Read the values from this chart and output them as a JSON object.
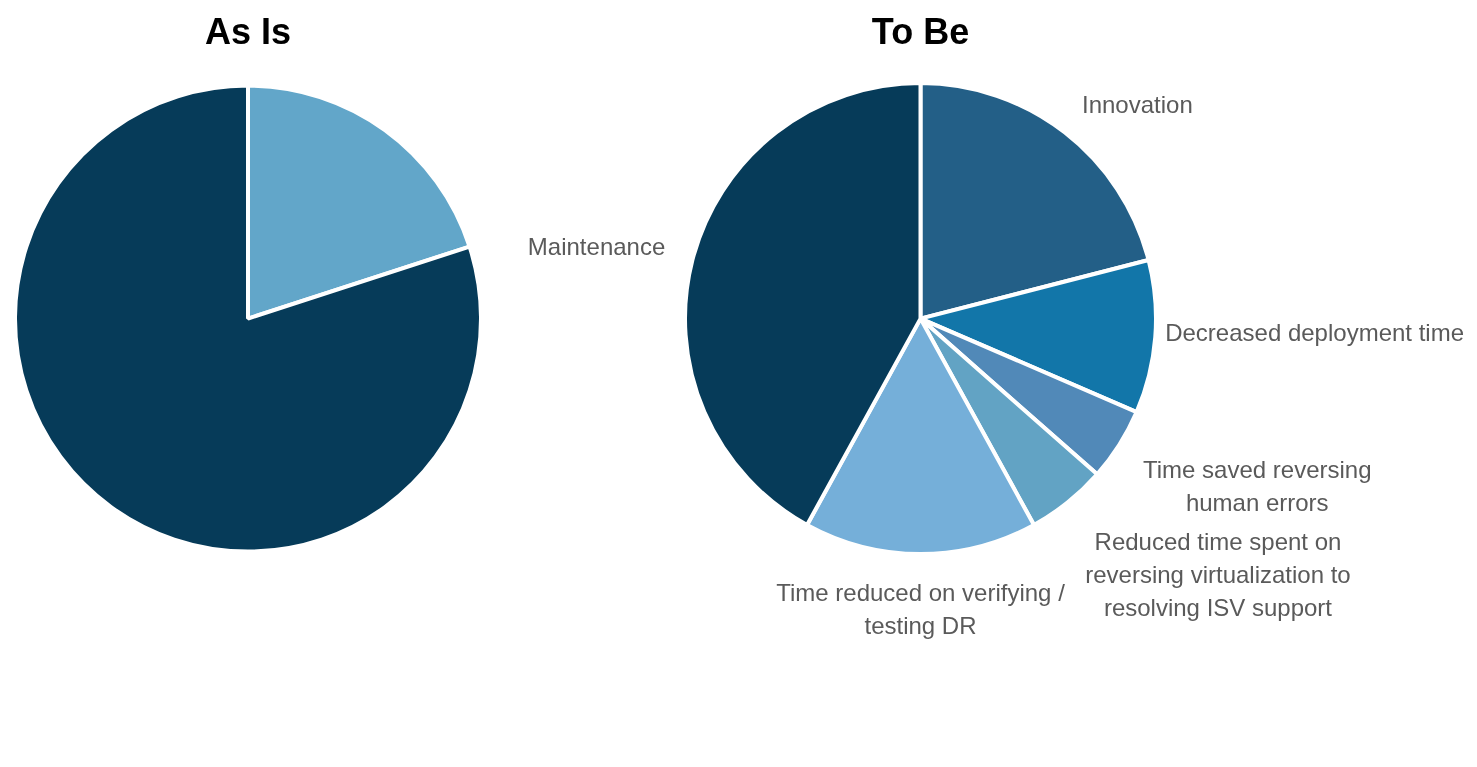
{
  "chart_data": [
    {
      "type": "pie",
      "title": "As Is",
      "categories": [
        null,
        null
      ],
      "values": [
        20,
        80
      ],
      "colors": [
        "#62a6c9",
        "#063b59"
      ]
    },
    {
      "type": "pie",
      "title": "To Be",
      "categories": [
        "Innovation",
        "Decreased deployment time",
        "Time saved reversing human errors",
        "Reduced time spent on reversing virtualization to resolving ISV support",
        "Time reduced on verifying / testing DR",
        "Maintenance"
      ],
      "values": [
        21,
        10.5,
        5,
        5.5,
        16,
        42
      ],
      "colors": [
        "#235f87",
        "#1276a9",
        "#5189b8",
        "#62a3c4",
        "#75afd9",
        "#063b59"
      ]
    }
  ]
}
